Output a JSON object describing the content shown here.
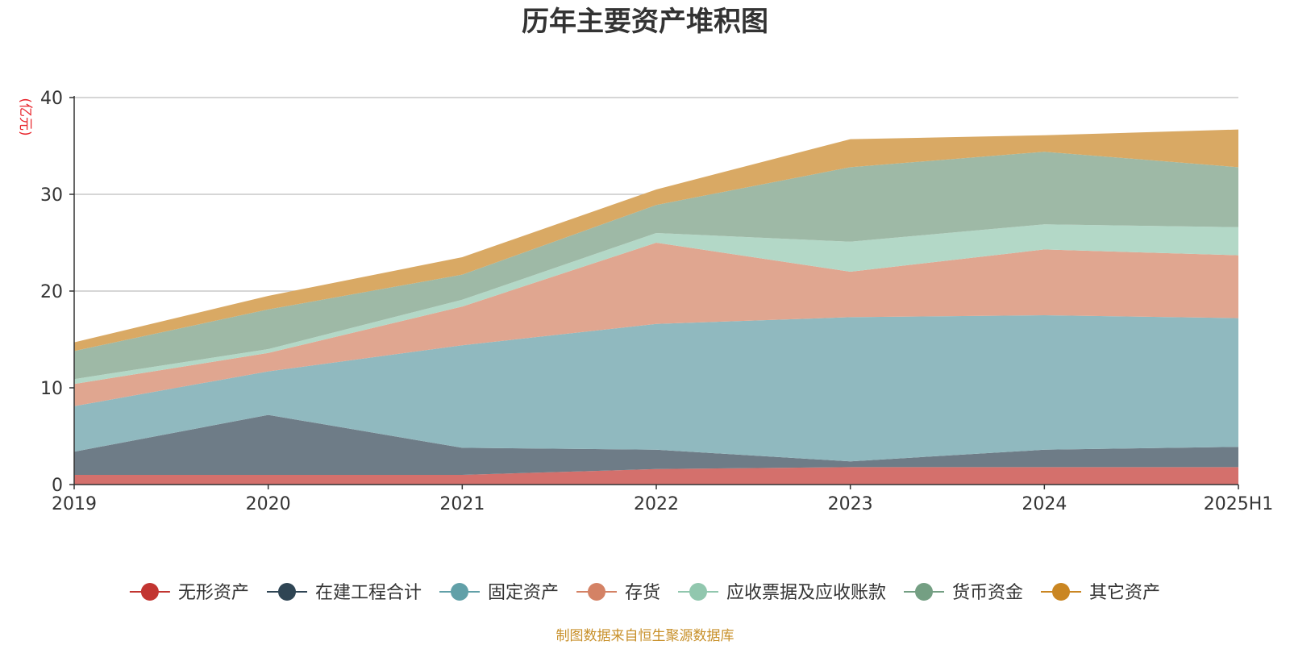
{
  "chart_data": {
    "type": "area",
    "stacked": true,
    "title": "历年主要资产堆积图",
    "unit": "(亿元)",
    "source": "制图数据来自恒生聚源数据库",
    "x": [
      "2019",
      "2020",
      "2021",
      "2022",
      "2023",
      "2024",
      "2025H1"
    ],
    "ylim": [
      0,
      40
    ],
    "yticks": [
      "0",
      "10",
      "20",
      "30",
      "40"
    ],
    "grid": true,
    "legend_position": "bottom",
    "series": [
      {
        "name": "无形资产",
        "color": "#c23531",
        "fill": "#d4706c",
        "values": [
          1.0,
          1.0,
          1.0,
          1.6,
          1.8,
          1.8,
          1.8
        ]
      },
      {
        "name": "在建工程合计",
        "color": "#2f4554",
        "fill": "#6e7c87",
        "values": [
          2.4,
          6.2,
          2.8,
          2.0,
          0.6,
          1.8,
          2.1
        ]
      },
      {
        "name": "固定资产",
        "color": "#61a0a8",
        "fill": "#90b9bf",
        "values": [
          4.7,
          4.5,
          10.6,
          13.0,
          14.9,
          13.9,
          13.3
        ]
      },
      {
        "name": "存货",
        "color": "#d48265",
        "fill": "#e0a690",
        "values": [
          2.3,
          1.9,
          4.0,
          8.4,
          4.7,
          6.8,
          6.5
        ]
      },
      {
        "name": "应收票据及应收账款",
        "color": "#91c7ae",
        "fill": "#b3d8c7",
        "values": [
          0.5,
          0.4,
          0.7,
          1.0,
          3.1,
          2.6,
          2.9
        ]
      },
      {
        "name": "货币资金",
        "color": "#749f83",
        "fill": "#9eb9a6",
        "values": [
          2.9,
          4.1,
          2.6,
          2.9,
          7.7,
          7.5,
          6.2
        ]
      },
      {
        "name": "其它资产",
        "color": "#ca8622",
        "fill": "#d9a964",
        "values": [
          0.9,
          1.4,
          1.8,
          1.6,
          2.9,
          1.7,
          3.9
        ]
      }
    ]
  }
}
